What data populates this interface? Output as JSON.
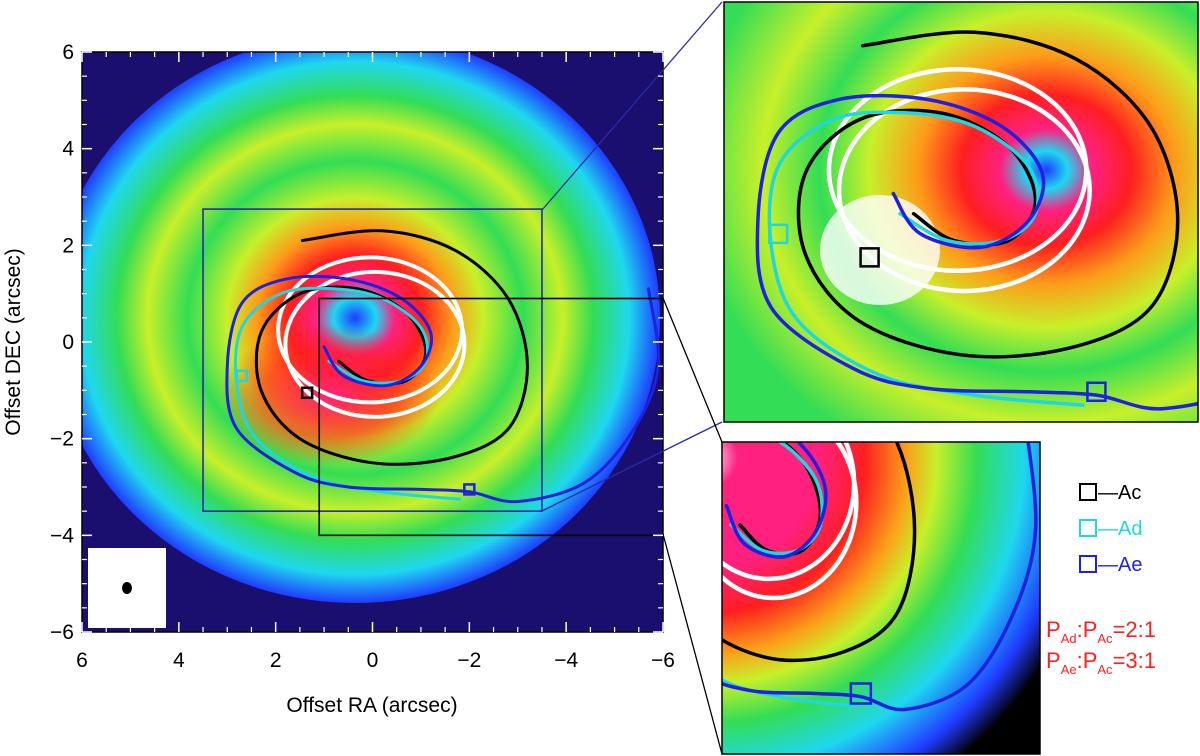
{
  "chart_data": {
    "type": "heatmap",
    "xlabel": "Offset RA (arcsec)",
    "ylabel": "Offset DEC (arcsec)",
    "xlim": [
      6,
      -6
    ],
    "ylim": [
      -6,
      6
    ],
    "x_ticks": [
      "6",
      "4",
      "2",
      "0",
      "−2",
      "−4",
      "−6"
    ],
    "y_ticks": [
      "6",
      "4",
      "2",
      "0",
      "−2",
      "−4",
      "−6"
    ],
    "colormap": [
      "#1a0f6e",
      "#1f3cff",
      "#1fd7f0",
      "#33dd55",
      "#c8f02a",
      "#ff9a1a",
      "#ff1f1f",
      "#ff2080",
      "#ffffff"
    ],
    "rings": [
      {
        "x": -0.05,
        "y": -0.05,
        "rx": 1.85,
        "ry": 1.5,
        "color": "#ffffff"
      },
      {
        "x": 0.05,
        "y": 0.25,
        "rx": 1.9,
        "ry": 1.5,
        "color": "#ffffff"
      }
    ],
    "inset_boxes": [
      {
        "x": [
          3.5,
          -3.5
        ],
        "y": [
          -3.5,
          2.75
        ],
        "color": "#2a2aa8"
      },
      {
        "x": [
          1.1,
          -6
        ],
        "y": [
          -4,
          0.9
        ],
        "color": "#000000"
      }
    ],
    "series": [
      {
        "name": "Ac",
        "color": "#000000",
        "points": [
          [
            1.45,
            2.1
          ],
          [
            -0.2,
            2.3
          ],
          [
            -1.7,
            1.9
          ],
          [
            -2.8,
            0.9
          ],
          [
            -3.2,
            -0.5
          ],
          [
            -2.8,
            -1.8
          ],
          [
            -1.6,
            -2.4
          ],
          [
            0.0,
            -2.5
          ],
          [
            1.5,
            -2.0
          ],
          [
            2.3,
            -1.0
          ],
          [
            2.3,
            0.2
          ],
          [
            1.5,
            1.0
          ],
          [
            0.3,
            1.1
          ],
          [
            -0.7,
            0.6
          ],
          [
            -1.1,
            -0.2
          ],
          [
            -0.7,
            -0.8
          ],
          [
            0.1,
            -0.8
          ],
          [
            0.7,
            -0.4
          ]
        ]
      },
      {
        "name": "Ad",
        "color": "#1fd7e0",
        "points": [
          [
            -1.8,
            -3.25
          ],
          [
            -0.2,
            -3.1
          ],
          [
            1.2,
            -2.8
          ],
          [
            2.4,
            -2.0
          ],
          [
            2.8,
            -0.9
          ],
          [
            2.7,
            0.3
          ],
          [
            1.9,
            1.0
          ],
          [
            0.8,
            1.1
          ],
          [
            -0.2,
            0.9
          ],
          [
            -1.0,
            0.3
          ],
          [
            -1.1,
            -0.4
          ],
          [
            -0.6,
            -0.8
          ],
          [
            0.2,
            -0.8
          ],
          [
            0.9,
            -0.4
          ]
        ]
      },
      {
        "name": "Ae",
        "color": "#2020e0",
        "points": [
          [
            -5.7,
            1.1
          ],
          [
            -5.9,
            -0.5
          ],
          [
            -5.4,
            -1.8
          ],
          [
            -4.4,
            -2.9
          ],
          [
            -3.0,
            -3.3
          ],
          [
            -2.0,
            -3.1
          ],
          [
            -1.0,
            -3.05
          ],
          [
            0.5,
            -3.0
          ],
          [
            1.6,
            -2.7
          ],
          [
            2.8,
            -1.8
          ],
          [
            3.0,
            -0.5
          ],
          [
            2.7,
            0.8
          ],
          [
            1.8,
            1.3
          ],
          [
            0.5,
            1.3
          ],
          [
            -0.6,
            0.9
          ],
          [
            -1.2,
            0.2
          ],
          [
            -1.0,
            -0.5
          ],
          [
            -0.3,
            -0.9
          ],
          [
            0.6,
            -0.7
          ],
          [
            1.0,
            -0.1
          ]
        ]
      }
    ],
    "markers": [
      {
        "series": "Ac",
        "x": 1.35,
        "y": -1.05
      },
      {
        "series": "Ad",
        "x": 2.7,
        "y": -0.7
      },
      {
        "series": "Ae",
        "x": -2.0,
        "y": -3.05
      }
    ],
    "legend": {
      "placement": "right",
      "items": [
        {
          "label": "—Ac",
          "color": "#000000"
        },
        {
          "label": "—Ad",
          "color": "#1fd7e0"
        },
        {
          "label": "—Ae",
          "color": "#2020e0"
        }
      ]
    },
    "annotations": [
      {
        "text": "P",
        "sub1": "Ad",
        "mid": ":P",
        "sub2": "Ac",
        "tail": "=2:1",
        "color": "#ff1f1f"
      },
      {
        "text": "P",
        "sub1": "Ae",
        "mid": ":P",
        "sub2": "Ac",
        "tail": "=3:1",
        "color": "#ff1f1f"
      }
    ]
  }
}
